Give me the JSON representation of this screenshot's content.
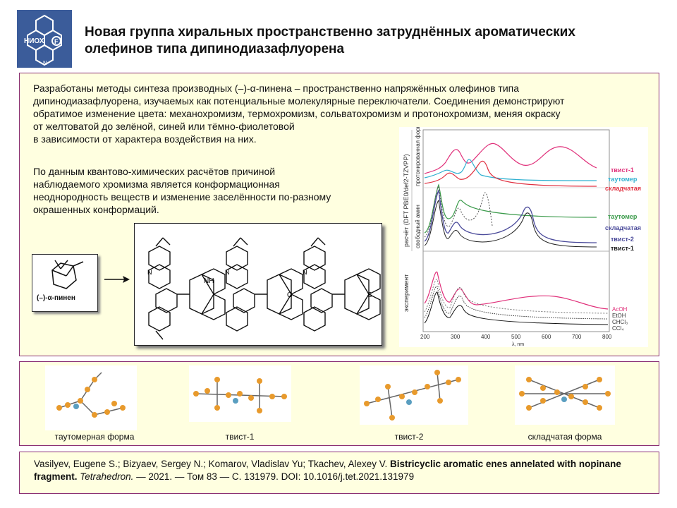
{
  "logo": {
    "text_main": "НИОХ",
    "text_f": "F",
    "text_n": "N"
  },
  "title": {
    "line1": "Новая группа хиральных пространственно затруднённых ароматических",
    "line2": "олефинов типа дипинодиазафлуорена"
  },
  "intro": {
    "lines": [
      "Разработаны методы синтеза производных (–)-α-пинена – пространственно напряжённых олефинов типа",
      "дипинодиазафлуорена,  изучаемых как потенциальные молекулярные переключатели.  Соединения демонстрируют",
      "обратимое изменение цвета: механохромизм, термохромизм, сольватохромизм и протонохромизм, меняя окраску",
      "от желтоватой до зелёной,  синей или  тёмно-фиолетовой",
      "в зависимости  от характера воздействия на них."
    ]
  },
  "quantum": {
    "lines": [
      "По данным квантово-химических  расчётов причиной",
      "наблюдаемого хромизма является конформационная",
      "неоднородность веществ и изменение  заселённости  по-разному",
      "окрашенных  конформаций."
    ]
  },
  "alpha_pinene_label": "(–)-α-пинен",
  "structure_labels": {
    "nh": "NH",
    "o": "O",
    "s": "S",
    "n": "N"
  },
  "spectrum": {
    "ylabel_calc": "расчёт (DFT PBE0/def2-TZVPP)",
    "group_protonated": "протонированная форма",
    "group_free": "свободный амин",
    "group_exp": "эксперимент",
    "legend_top": [
      "твист-1",
      "таутомер",
      "складчатая"
    ],
    "legend_mid": [
      "таутомер",
      "складчатая",
      "твист-2",
      "твист-1"
    ],
    "legend_exp": [
      "AcOH",
      "EtOH",
      "CHCl₃",
      "CCl₄"
    ],
    "x_ticks": [
      "200",
      "300",
      "400",
      "500",
      "600",
      "700",
      "800"
    ],
    "xlabel": "λ, nm",
    "colors": {
      "twist1": "#e0307a",
      "tautomer": "#30b0d0",
      "folded": "#e03040",
      "green": "#3a9a4a",
      "purple": "#4a4a9a",
      "gray": "#555555"
    }
  },
  "conformers": [
    {
      "label": "таутомерная  форма",
      "icon": "tautomer-conformer-3d"
    },
    {
      "label": "твист-1",
      "icon": "twist1-conformer-3d"
    },
    {
      "label": "твист-2",
      "icon": "twist2-conformer-3d"
    },
    {
      "label": "складчатая  форма",
      "icon": "folded-conformer-3d"
    }
  ],
  "reference": {
    "authors": "Vasilyev, Eugene S.; Bizyaev, Sergey N.; Komarov, Vladislav Yu; Tkachev, Alexey V. ",
    "title": "Bistricyclic aromatic enes annelated with nopinane fragment.",
    "journal": "Tetrahedron.",
    "details": " — 2021.  — Том 83 — С. 131979. DOI: 10.1016/j.tet.2021.131979"
  }
}
